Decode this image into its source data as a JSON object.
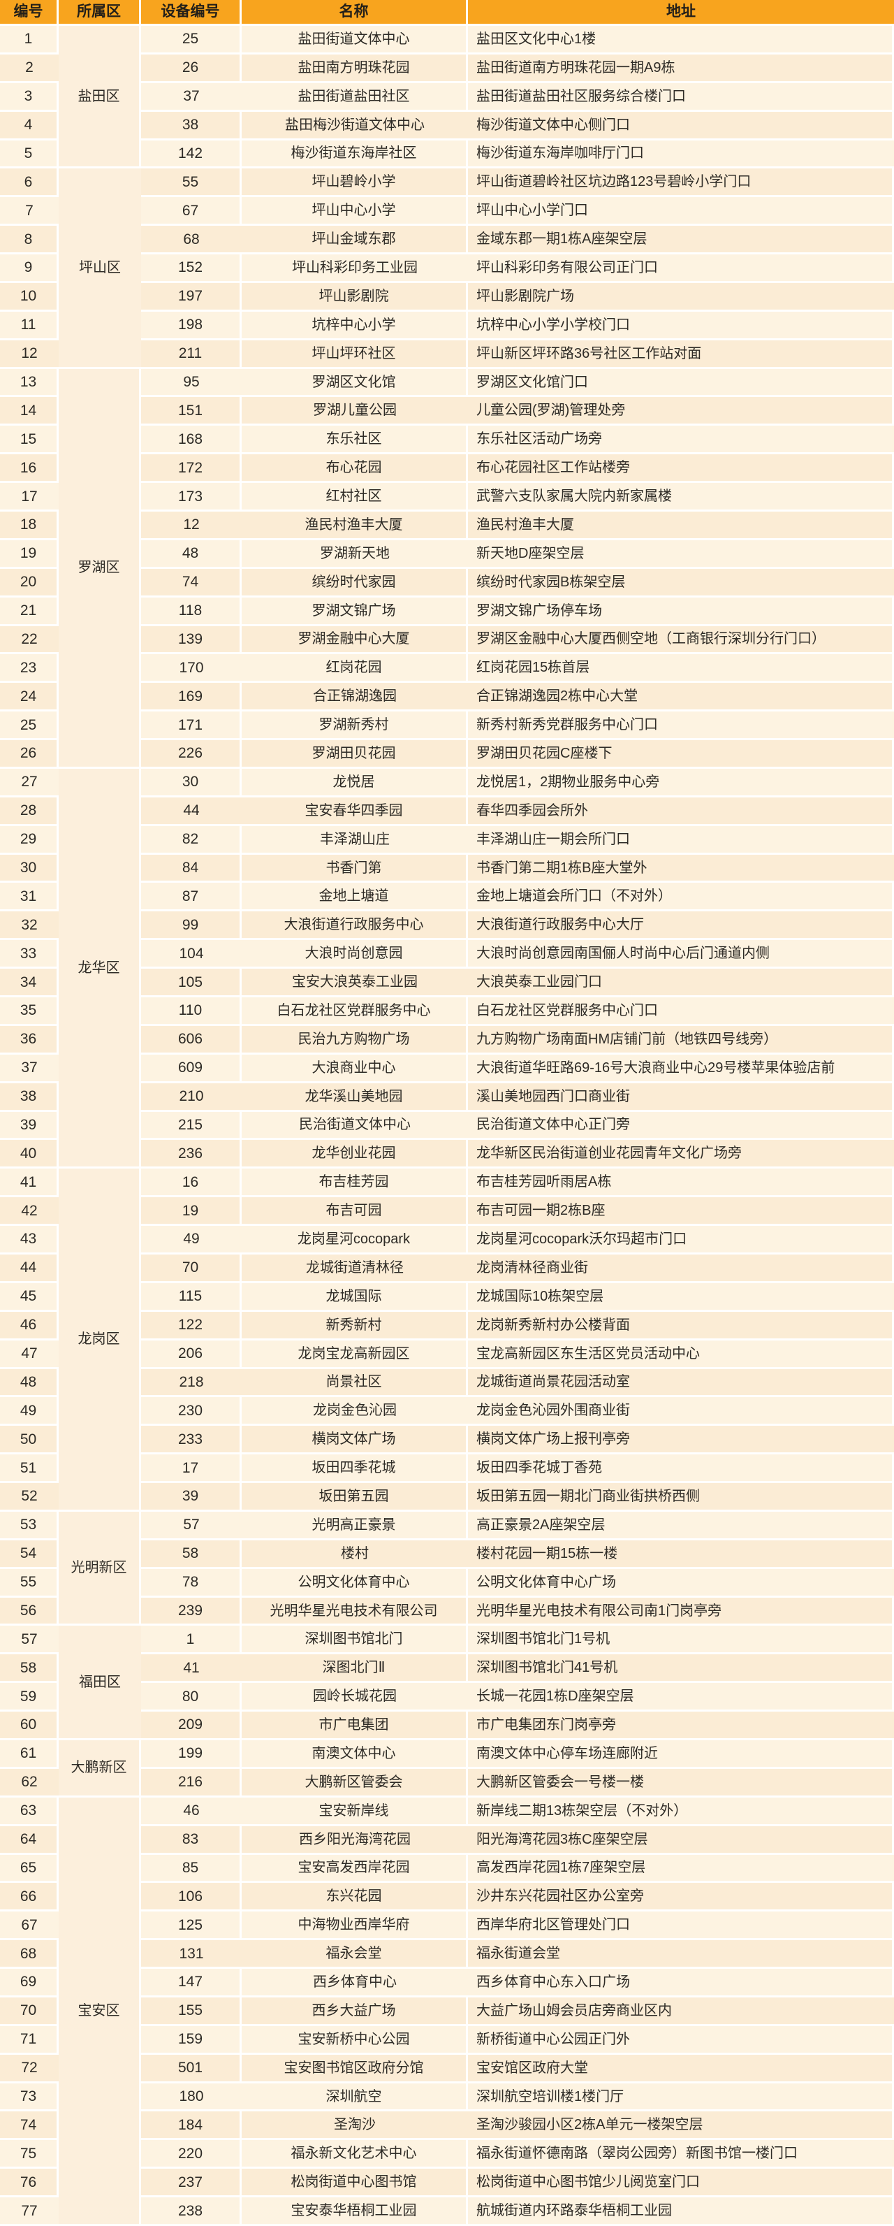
{
  "table": {
    "columns": [
      "编号",
      "所属区",
      "设备编号",
      "名称",
      "地址"
    ],
    "districts": [
      {
        "name": "盐田区",
        "start": 1,
        "span": 5
      },
      {
        "name": "坪山区",
        "start": 6,
        "span": 7
      },
      {
        "name": "罗湖区",
        "start": 13,
        "span": 14
      },
      {
        "name": "龙华区",
        "start": 27,
        "span": 14
      },
      {
        "name": "龙岗区",
        "start": 41,
        "span": 12
      },
      {
        "name": "光明新区",
        "start": 53,
        "span": 4
      },
      {
        "name": "福田区",
        "start": 57,
        "span": 4
      },
      {
        "name": "大鹏新区",
        "start": 61,
        "span": 2
      },
      {
        "name": "宝安区",
        "start": 63,
        "span": 15
      }
    ],
    "rows": [
      {
        "no": "1",
        "device": "25",
        "name": "盐田街道文体中心",
        "address": "盐田区文化中心1楼"
      },
      {
        "no": "2",
        "device": "26",
        "name": "盐田南方明珠花园",
        "address": "盐田街道南方明珠花园一期A9栋"
      },
      {
        "no": "3",
        "device": "37",
        "name": "盐田街道盐田社区",
        "address": "盐田街道盐田社区服务综合楼门口"
      },
      {
        "no": "4",
        "device": "38",
        "name": "盐田梅沙街道文体中心",
        "address": "梅沙街道文体中心侧门口"
      },
      {
        "no": "5",
        "device": "142",
        "name": "梅沙街道东海岸社区",
        "address": "梅沙街道东海岸咖啡厅门口"
      },
      {
        "no": "6",
        "device": "55",
        "name": "坪山碧岭小学",
        "address": "坪山街道碧岭社区坑边路123号碧岭小学门口"
      },
      {
        "no": "7",
        "device": "67",
        "name": "坪山中心小学",
        "address": "坪山中心小学门口"
      },
      {
        "no": "8",
        "device": "68",
        "name": "坪山金域东郡",
        "address": "金域东郡一期1栋A座架空层"
      },
      {
        "no": "9",
        "device": "152",
        "name": "坪山科彩印务工业园",
        "address": "坪山科彩印务有限公司正门口"
      },
      {
        "no": "10",
        "device": "197",
        "name": "坪山影剧院",
        "address": "坪山影剧院广场"
      },
      {
        "no": "11",
        "device": "198",
        "name": "坑梓中心小学",
        "address": "坑梓中心小学小学校门口"
      },
      {
        "no": "12",
        "device": "211",
        "name": "坪山坪环社区",
        "address": "坪山新区坪环路36号社区工作站对面"
      },
      {
        "no": "13",
        "device": "95",
        "name": "罗湖区文化馆",
        "address": "罗湖区文化馆门口"
      },
      {
        "no": "14",
        "device": "151",
        "name": "罗湖儿童公园",
        "address": "儿童公园(罗湖)管理处旁"
      },
      {
        "no": "15",
        "device": "168",
        "name": "东乐社区",
        "address": "东乐社区活动广场旁"
      },
      {
        "no": "16",
        "device": "172",
        "name": "布心花园",
        "address": "布心花园社区工作站楼旁"
      },
      {
        "no": "17",
        "device": "173",
        "name": "红村社区",
        "address": "武警六支队家属大院内新家属楼"
      },
      {
        "no": "18",
        "device": "12",
        "name": "渔民村渔丰大厦",
        "address": "渔民村渔丰大厦"
      },
      {
        "no": "19",
        "device": "48",
        "name": "罗湖新天地",
        "address": "新天地D座架空层"
      },
      {
        "no": "20",
        "device": "74",
        "name": "缤纷时代家园",
        "address": "缤纷时代家园B栋架空层"
      },
      {
        "no": "21",
        "device": "118",
        "name": "罗湖文锦广场",
        "address": "罗湖文锦广场停车场"
      },
      {
        "no": "22",
        "device": "139",
        "name": "罗湖金融中心大厦",
        "address": "罗湖区金融中心大厦西侧空地（工商银行深圳分行门口）"
      },
      {
        "no": "23",
        "device": "170",
        "name": "红岗花园",
        "address": "红岗花园15栋首层"
      },
      {
        "no": "24",
        "device": "169",
        "name": "合正锦湖逸园",
        "address": "合正锦湖逸园2栋中心大堂"
      },
      {
        "no": "25",
        "device": "171",
        "name": "罗湖新秀村",
        "address": "新秀村新秀党群服务中心门口"
      },
      {
        "no": "26",
        "device": "226",
        "name": "罗湖田贝花园",
        "address": "罗湖田贝花园C座楼下"
      },
      {
        "no": "27",
        "device": "30",
        "name": "龙悦居",
        "address": "龙悦居1，2期物业服务中心旁"
      },
      {
        "no": "28",
        "device": "44",
        "name": "宝安春华四季园",
        "address": "春华四季园会所外"
      },
      {
        "no": "29",
        "device": "82",
        "name": "丰泽湖山庄",
        "address": "丰泽湖山庄一期会所门口"
      },
      {
        "no": "30",
        "device": "84",
        "name": "书香门第",
        "address": "书香门第二期1栋B座大堂外"
      },
      {
        "no": "31",
        "device": "87",
        "name": "金地上塘道",
        "address": "金地上塘道会所门口（不对外）"
      },
      {
        "no": "32",
        "device": "99",
        "name": "大浪街道行政服务中心",
        "address": "大浪街道行政服务中心大厅"
      },
      {
        "no": "33",
        "device": "104",
        "name": "大浪时尚创意园",
        "address": "大浪时尚创意园南国俪人时尚中心后门通道内侧"
      },
      {
        "no": "34",
        "device": "105",
        "name": "宝安大浪英泰工业园",
        "address": "大浪英泰工业园门口"
      },
      {
        "no": "35",
        "device": "110",
        "name": "白石龙社区党群服务中心",
        "address": "白石龙社区党群服务中心门口"
      },
      {
        "no": "36",
        "device": "606",
        "name": "民治九方购物广场",
        "address": "九方购物广场南面HM店铺门前（地铁四号线旁）"
      },
      {
        "no": "37",
        "device": "609",
        "name": "大浪商业中心",
        "address": "大浪街道华旺路69-16号大浪商业中心29号楼苹果体验店前"
      },
      {
        "no": "38",
        "device": "210",
        "name": "龙华溪山美地园",
        "address": "溪山美地园西门口商业街"
      },
      {
        "no": "39",
        "device": "215",
        "name": "民治街道文体中心",
        "address": "民治街道文体中心正门旁"
      },
      {
        "no": "40",
        "device": "236",
        "name": "龙华创业花园",
        "address": "龙华新区民治街道创业花园青年文化广场旁"
      },
      {
        "no": "41",
        "device": "16",
        "name": "布吉桂芳园",
        "address": "布吉桂芳园听雨居A栋"
      },
      {
        "no": "42",
        "device": "19",
        "name": "布吉可园",
        "address": "布吉可园一期2栋B座"
      },
      {
        "no": "43",
        "device": "49",
        "name": "龙岗星河cocopark",
        "address": "龙岗星河cocopark沃尔玛超市门口"
      },
      {
        "no": "44",
        "device": "70",
        "name": "龙城街道清林径",
        "address": "龙岗清林径商业街"
      },
      {
        "no": "45",
        "device": "115",
        "name": "龙城国际",
        "address": "龙城国际10栋架空层"
      },
      {
        "no": "46",
        "device": "122",
        "name": "新秀新村",
        "address": "龙岗新秀新村办公楼背面"
      },
      {
        "no": "47",
        "device": "206",
        "name": "龙岗宝龙高新园区",
        "address": "宝龙高新园区东生活区党员活动中心"
      },
      {
        "no": "48",
        "device": "218",
        "name": "尚景社区",
        "address": "龙城街道尚景花园活动室"
      },
      {
        "no": "49",
        "device": "230",
        "name": "龙岗金色沁园",
        "address": "龙岗金色沁园外围商业街"
      },
      {
        "no": "50",
        "device": "233",
        "name": "横岗文体广场",
        "address": "横岗文体广场上报刊亭旁"
      },
      {
        "no": "51",
        "device": "17",
        "name": "坂田四季花城",
        "address": "坂田四季花城丁香苑"
      },
      {
        "no": "52",
        "device": "39",
        "name": "坂田第五园",
        "address": "坂田第五园一期北门商业街拱桥西侧"
      },
      {
        "no": "53",
        "device": "57",
        "name": "光明高正豪景",
        "address": "高正豪景2A座架空层"
      },
      {
        "no": "54",
        "device": "58",
        "name": "楼村",
        "address": "楼村花园一期15栋一楼"
      },
      {
        "no": "55",
        "device": "78",
        "name": "公明文化体育中心",
        "address": "公明文化体育中心广场"
      },
      {
        "no": "56",
        "device": "239",
        "name": "光明华星光电技术有限公司",
        "address": "光明华星光电技术有限公司南1门岗亭旁"
      },
      {
        "no": "57",
        "device": "1",
        "name": "深圳图书馆北门",
        "address": "深圳图书馆北门1号机"
      },
      {
        "no": "58",
        "device": "41",
        "name": "深图北门Ⅱ",
        "address": "深圳图书馆北门41号机"
      },
      {
        "no": "59",
        "device": "80",
        "name": "园岭长城花园",
        "address": "长城一花园1栋D座架空层"
      },
      {
        "no": "60",
        "device": "209",
        "name": "市广电集团",
        "address": "市广电集团东门岗亭旁"
      },
      {
        "no": "61",
        "device": "199",
        "name": "南澳文体中心",
        "address": "南澳文体中心停车场连廊附近"
      },
      {
        "no": "62",
        "device": "216",
        "name": "大鹏新区管委会",
        "address": "大鹏新区管委会一号楼一楼"
      },
      {
        "no": "63",
        "device": "46",
        "name": "宝安新岸线",
        "address": "新岸线二期13栋架空层（不对外）"
      },
      {
        "no": "64",
        "device": "83",
        "name": "西乡阳光海湾花园",
        "address": "阳光海湾花园3栋C座架空层"
      },
      {
        "no": "65",
        "device": "85",
        "name": "宝安高发西岸花园",
        "address": "高发西岸花园1栋7座架空层"
      },
      {
        "no": "66",
        "device": "106",
        "name": "东兴花园",
        "address": "沙井东兴花园社区办公室旁"
      },
      {
        "no": "67",
        "device": "125",
        "name": "中海物业西岸华府",
        "address": "西岸华府北区管理处门口"
      },
      {
        "no": "68",
        "device": "131",
        "name": "福永会堂",
        "address": "福永街道会堂"
      },
      {
        "no": "69",
        "device": "147",
        "name": "西乡体育中心",
        "address": "西乡体育中心东入口广场"
      },
      {
        "no": "70",
        "device": "155",
        "name": "西乡大益广场",
        "address": "大益广场山姆会员店旁商业区内"
      },
      {
        "no": "71",
        "device": "159",
        "name": "宝安新桥中心公园",
        "address": "新桥街道中心公园正门外"
      },
      {
        "no": "72",
        "device": "501",
        "name": "宝安图书馆区政府分馆",
        "address": "宝安馆区政府大堂"
      },
      {
        "no": "73",
        "device": "180",
        "name": "深圳航空",
        "address": "深圳航空培训楼1楼门厅"
      },
      {
        "no": "74",
        "device": "184",
        "name": "圣淘沙",
        "address": "圣淘沙骏园小区2栋A单元一楼架空层"
      },
      {
        "no": "75",
        "device": "220",
        "name": "福永新文化艺术中心",
        "address": "福永街道怀德南路（翠岗公园旁）新图书馆一楼门口"
      },
      {
        "no": "76",
        "device": "237",
        "name": "松岗街道中心图书馆",
        "address": "松岗街道中心图书馆少儿阅览室门口"
      },
      {
        "no": "77",
        "device": "238",
        "name": "宝安泰华梧桐工业园",
        "address": "航城街道内环路泰华梧桐工业园"
      }
    ]
  },
  "colors": {
    "header_bg": "#f8a41e",
    "row_odd_bg": "#fdf3e1",
    "row_even_bg": "#fbecd5",
    "district_bg": "#fcefdc",
    "separator": "#ffffff",
    "text": "#2e2b26"
  }
}
